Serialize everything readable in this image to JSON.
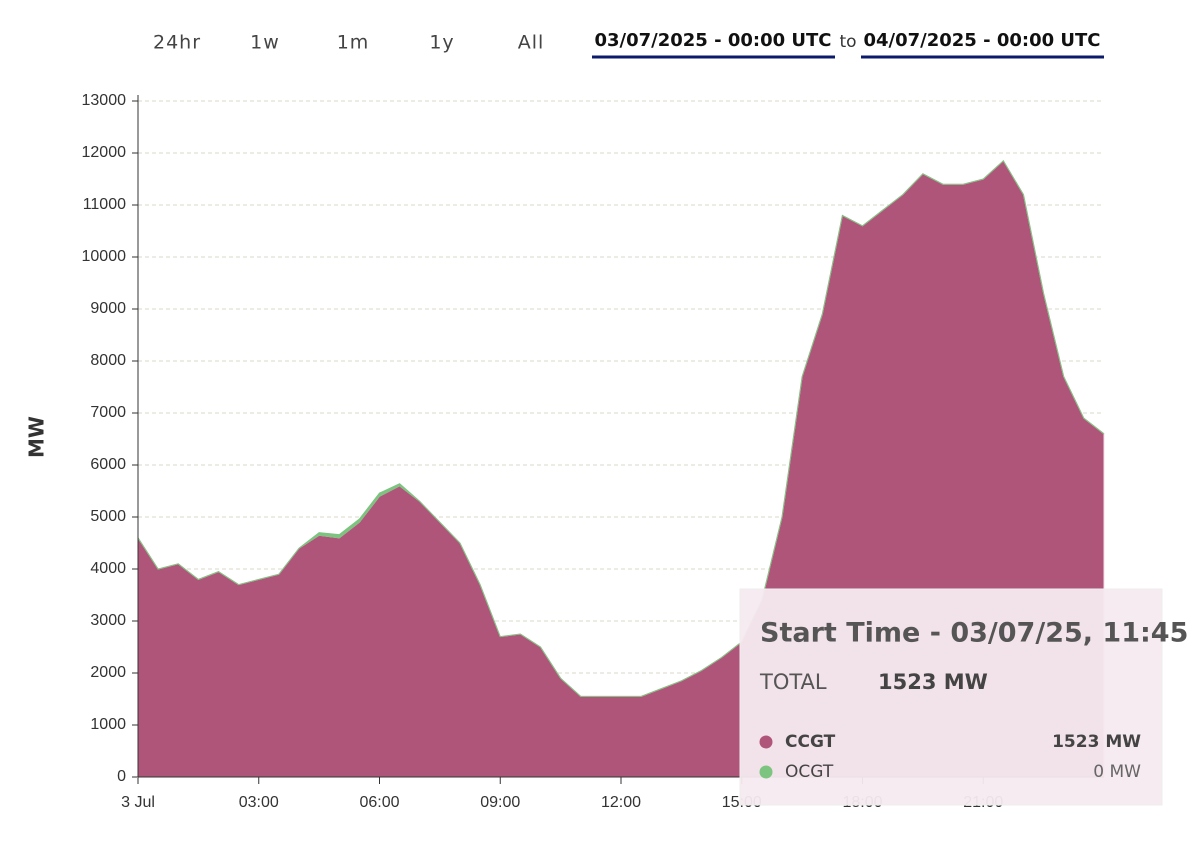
{
  "controls": {
    "ranges": [
      "24hr",
      "1w",
      "1m",
      "1y",
      "All"
    ],
    "start": "03/07/2025 - 00:00 UTC",
    "to": "to",
    "end": "04/07/2025 - 00:00 UTC"
  },
  "chart_data": {
    "type": "area",
    "stacked": true,
    "ylabel": "MW",
    "x": [
      0,
      0.5,
      1,
      1.5,
      2,
      2.5,
      3,
      3.5,
      4,
      4.5,
      5,
      5.5,
      6,
      6.5,
      7,
      7.5,
      8,
      8.5,
      9,
      9.5,
      10,
      10.5,
      11,
      11.5,
      12,
      12.5,
      13,
      13.5,
      14,
      14.5,
      15,
      15.5,
      16,
      16.5,
      17,
      17.5,
      18,
      18.5,
      19,
      19.5,
      20,
      20.5,
      21,
      21.5,
      22,
      22.5,
      23,
      23.5,
      24
    ],
    "xlim": [
      0,
      24
    ],
    "xticks": [
      {
        "value": 0,
        "label": "3 Jul"
      },
      {
        "value": 3,
        "label": "03:00"
      },
      {
        "value": 6,
        "label": "06:00"
      },
      {
        "value": 9,
        "label": "09:00"
      },
      {
        "value": 12,
        "label": "12:00"
      },
      {
        "value": 15,
        "label": "15:00"
      },
      {
        "value": 18,
        "label": "18:00"
      },
      {
        "value": 21,
        "label": "21:00"
      }
    ],
    "ylim": [
      0,
      13000
    ],
    "yticks": [
      0,
      1000,
      2000,
      3000,
      4000,
      5000,
      6000,
      7000,
      8000,
      9000,
      10000,
      11000,
      12000,
      13000
    ],
    "grid": true,
    "series": [
      {
        "name": "CCGT",
        "color": "#b0557a",
        "values": [
          4600,
          4000,
          4100,
          3800,
          3950,
          3700,
          3800,
          3900,
          4400,
          4650,
          4600,
          4900,
          5400,
          5600,
          5300,
          4900,
          4500,
          3700,
          2700,
          2750,
          2500,
          1900,
          1550,
          1550,
          1550,
          1550,
          1700,
          1850,
          2050,
          2300,
          2600,
          3400,
          5000,
          7700,
          8900,
          10800,
          10600,
          10900,
          11200,
          11600,
          11400,
          11400,
          11500,
          11850,
          11200,
          9300,
          7700,
          6900,
          6600
        ]
      },
      {
        "name": "OCGT",
        "color": "#7cc47f",
        "values": [
          0,
          0,
          0,
          0,
          0,
          0,
          0,
          0,
          0,
          50,
          60,
          60,
          60,
          40,
          0,
          0,
          0,
          0,
          0,
          0,
          0,
          0,
          0,
          0,
          0,
          0,
          0,
          0,
          0,
          0,
          0,
          0,
          0,
          0,
          0,
          0,
          0,
          0,
          0,
          0,
          0,
          0,
          0,
          0,
          0,
          0,
          0,
          0,
          0
        ]
      }
    ]
  },
  "tooltip": {
    "title": "Start Time - 03/07/25, 11:45",
    "total_label": "TOTAL",
    "total": "1523 MW",
    "rows": [
      "1523 MW",
      "0 MW"
    ]
  }
}
